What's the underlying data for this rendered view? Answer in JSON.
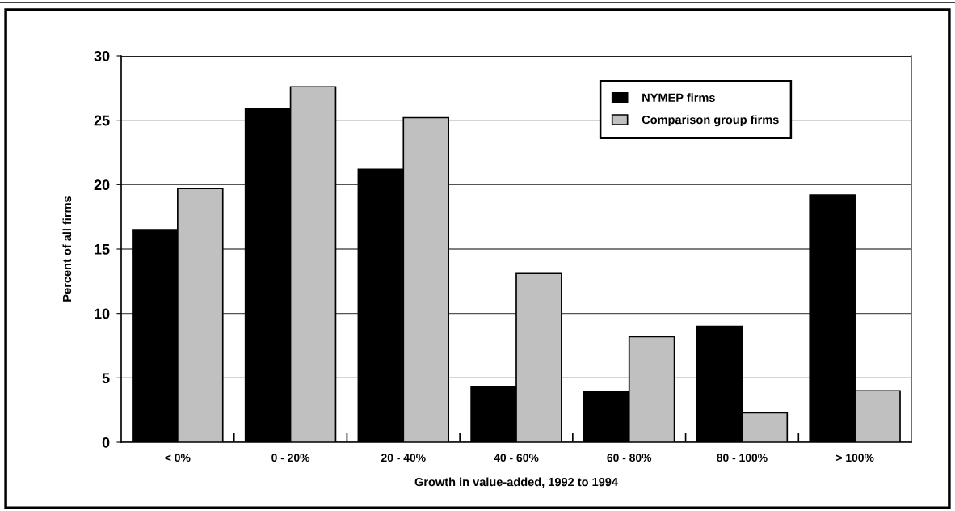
{
  "chart_data": {
    "type": "bar",
    "xlabel": "Growth in value-added, 1992 to 1994",
    "ylabel": "Percent of all firms",
    "categories": [
      "< 0%",
      "0 - 20%",
      "20 - 40%",
      "40 - 60%",
      "60 - 80%",
      "80 - 100%",
      "> 100%"
    ],
    "series": [
      {
        "name": "NYMEP firms",
        "color": "#000000",
        "values": [
          16.5,
          25.9,
          21.2,
          4.3,
          3.9,
          9.0,
          19.2
        ]
      },
      {
        "name": "Comparison group firms",
        "color": "#c0c0c0",
        "values": [
          19.7,
          27.6,
          25.2,
          13.1,
          8.2,
          2.3,
          4.0
        ]
      }
    ],
    "ylim": [
      0,
      30
    ],
    "yticks": [
      0,
      5,
      10,
      15,
      20,
      25,
      30
    ],
    "grid": "y",
    "legend": "top right"
  }
}
